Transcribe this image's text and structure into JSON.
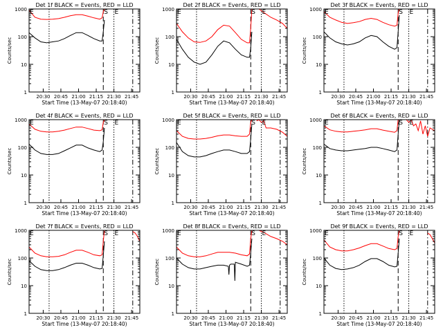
{
  "colors": {
    "events": "#000000",
    "lld": "#ff0000",
    "axis": "#000000",
    "background": "#ffffff"
  },
  "ylabel": "Counts/sec",
  "xlabel": "Start Time (13-May-07 20:18:40)",
  "ytick_labels": [
    "1",
    "10",
    "100",
    "1000"
  ],
  "xtick_labels": [
    "20:30",
    "20:45",
    "21:00",
    "21:15",
    "21:30",
    "21:45"
  ],
  "markers": {
    "s": "S",
    "e": "E"
  },
  "chart_data": [
    {
      "type": "line",
      "title": "Det 1f BLACK = Events, RED = LLD",
      "x_unit": "minutes after 20:18:40",
      "xlim": [
        0,
        94
      ],
      "ylim": [
        1,
        1000
      ],
      "yscale": "log",
      "vlines": [
        {
          "x": 17,
          "style": "dotted"
        },
        {
          "x": 63,
          "style": "dashed"
        },
        {
          "x": 72,
          "style": "dotted"
        },
        {
          "x": 88,
          "style": "dashdot"
        }
      ],
      "series": [
        {
          "name": "Events",
          "x": [
            0,
            5,
            10,
            15,
            20,
            25,
            30,
            35,
            40,
            45,
            50,
            55,
            60,
            62,
            63,
            64
          ],
          "y": [
            140,
            90,
            65,
            60,
            65,
            70,
            85,
            110,
            140,
            140,
            110,
            85,
            70,
            70,
            150,
            400
          ]
        },
        {
          "name": "LLD",
          "x": [
            0,
            5,
            10,
            15,
            20,
            25,
            30,
            35,
            40,
            45,
            50,
            55,
            60,
            62,
            63,
            64
          ],
          "y": [
            900,
            500,
            430,
            420,
            430,
            450,
            500,
            570,
            620,
            620,
            550,
            480,
            430,
            480,
            800,
            1000
          ]
        }
      ]
    },
    {
      "type": "line",
      "title": "Det 2f BLACK = Events, RED = LLD",
      "x_unit": "minutes after 20:18:40",
      "xlim": [
        0,
        94
      ],
      "ylim": [
        1,
        1000
      ],
      "yscale": "log",
      "vlines": [
        {
          "x": 17,
          "style": "dotted"
        },
        {
          "x": 63,
          "style": "dashed"
        },
        {
          "x": 72,
          "style": "dotted"
        },
        {
          "x": 88,
          "style": "dashdot"
        }
      ],
      "series": [
        {
          "name": "Events",
          "x": [
            0,
            5,
            10,
            15,
            20,
            25,
            30,
            35,
            40,
            45,
            50,
            55,
            60,
            62,
            63,
            64
          ],
          "y": [
            80,
            35,
            18,
            12,
            10,
            12,
            22,
            45,
            70,
            60,
            35,
            22,
            18,
            18,
            40,
            150
          ]
        },
        {
          "name": "LLD",
          "x": [
            0,
            5,
            10,
            15,
            20,
            25,
            30,
            35,
            40,
            45,
            50,
            55,
            60,
            62,
            63,
            64
          ],
          "y": [
            300,
            150,
            90,
            65,
            62,
            70,
            100,
            180,
            260,
            240,
            140,
            80,
            60,
            60,
            200,
            1000
          ]
        },
        {
          "name": "LLD-tail",
          "x": [
            70,
            75,
            80,
            85,
            90,
            94
          ],
          "y": [
            1000,
            700,
            500,
            400,
            300,
            200
          ]
        }
      ]
    },
    {
      "type": "line",
      "title": "Det 3f BLACK = Events, RED = LLD",
      "x_unit": "minutes after 20:18:40",
      "xlim": [
        0,
        94
      ],
      "ylim": [
        1,
        1000
      ],
      "yscale": "log",
      "vlines": [
        {
          "x": 17,
          "style": "dotted"
        },
        {
          "x": 63,
          "style": "dashed"
        },
        {
          "x": 72,
          "style": "dotted"
        },
        {
          "x": 88,
          "style": "dashdot"
        }
      ],
      "series": [
        {
          "name": "Events",
          "x": [
            0,
            5,
            10,
            15,
            20,
            25,
            30,
            35,
            40,
            45,
            50,
            55,
            60,
            62,
            63,
            64
          ],
          "y": [
            150,
            90,
            65,
            55,
            50,
            55,
            65,
            90,
            110,
            100,
            65,
            45,
            35,
            40,
            150,
            600
          ]
        },
        {
          "name": "LLD",
          "x": [
            0,
            5,
            10,
            15,
            20,
            25,
            30,
            35,
            40,
            45,
            50,
            55,
            60,
            62,
            63,
            64
          ],
          "y": [
            800,
            500,
            400,
            330,
            300,
            320,
            350,
            420,
            460,
            420,
            330,
            270,
            240,
            260,
            700,
            1000
          ]
        }
      ]
    },
    {
      "type": "line",
      "title": "Det 4f BLACK = Events, RED = LLD",
      "x_unit": "minutes after 20:18:40",
      "xlim": [
        0,
        94
      ],
      "ylim": [
        1,
        1000
      ],
      "yscale": "log",
      "vlines": [
        {
          "x": 17,
          "style": "dotted"
        },
        {
          "x": 63,
          "style": "dashed"
        },
        {
          "x": 72,
          "style": "dotted"
        },
        {
          "x": 88,
          "style": "dashdot"
        }
      ],
      "series": [
        {
          "name": "Events",
          "x": [
            0,
            5,
            10,
            15,
            20,
            25,
            30,
            35,
            40,
            45,
            50,
            55,
            60,
            62,
            63,
            64
          ],
          "y": [
            130,
            80,
            60,
            55,
            55,
            60,
            75,
            95,
            120,
            120,
            95,
            80,
            70,
            80,
            160,
            500
          ]
        },
        {
          "name": "LLD",
          "x": [
            0,
            5,
            10,
            15,
            20,
            25,
            30,
            35,
            40,
            45,
            50,
            55,
            60,
            62,
            63,
            64
          ],
          "y": [
            700,
            450,
            380,
            360,
            360,
            380,
            420,
            480,
            540,
            540,
            480,
            420,
            400,
            430,
            800,
            1000
          ]
        }
      ]
    },
    {
      "type": "line",
      "title": "Det 5f BLACK = Events, RED = LLD",
      "x_unit": "minutes after 20:18:40",
      "xlim": [
        0,
        94
      ],
      "ylim": [
        1,
        1000
      ],
      "yscale": "log",
      "vlines": [
        {
          "x": 17,
          "style": "dotted"
        },
        {
          "x": 63,
          "style": "dashed"
        },
        {
          "x": 72,
          "style": "dotted"
        },
        {
          "x": 88,
          "style": "dashdot"
        }
      ],
      "series": [
        {
          "name": "Events",
          "x": [
            0,
            5,
            10,
            15,
            20,
            25,
            30,
            35,
            40,
            45,
            50,
            55,
            60,
            62,
            63,
            64
          ],
          "y": [
            150,
            70,
            50,
            45,
            45,
            50,
            60,
            70,
            80,
            80,
            70,
            60,
            60,
            70,
            200,
            700
          ]
        },
        {
          "name": "LLD",
          "x": [
            0,
            5,
            10,
            15,
            20,
            25,
            30,
            35,
            40,
            45,
            50,
            55,
            60,
            62,
            63,
            64
          ],
          "y": [
            400,
            250,
            210,
            200,
            200,
            210,
            230,
            260,
            280,
            280,
            260,
            250,
            250,
            300,
            800,
            1000
          ]
        },
        {
          "name": "LLD-tail",
          "x": [
            68,
            70,
            72,
            74,
            76,
            80,
            85,
            90,
            94
          ],
          "y": [
            900,
            1000,
            800,
            900,
            500,
            500,
            450,
            350,
            250
          ]
        }
      ]
    },
    {
      "type": "line",
      "title": "Det 6f BLACK = Events, RED = LLD",
      "x_unit": "minutes after 20:18:40",
      "xlim": [
        0,
        94
      ],
      "ylim": [
        1,
        1000
      ],
      "yscale": "log",
      "vlines": [
        {
          "x": 17,
          "style": "dotted"
        },
        {
          "x": 63,
          "style": "dashed"
        },
        {
          "x": 72,
          "style": "dotted"
        },
        {
          "x": 88,
          "style": "dashdot"
        }
      ],
      "series": [
        {
          "name": "Events",
          "x": [
            0,
            5,
            10,
            15,
            20,
            25,
            30,
            35,
            40,
            45,
            50,
            55,
            60,
            62,
            63,
            64
          ],
          "y": [
            130,
            90,
            80,
            75,
            75,
            80,
            85,
            90,
            100,
            100,
            90,
            80,
            70,
            80,
            300,
            1000
          ]
        },
        {
          "name": "LLD",
          "x": [
            0,
            5,
            10,
            15,
            20,
            25,
            30,
            35,
            40,
            45,
            50,
            55,
            60,
            62,
            63,
            64
          ],
          "y": [
            600,
            430,
            380,
            360,
            360,
            380,
            400,
            430,
            470,
            470,
            420,
            380,
            350,
            400,
            1000,
            1000
          ]
        },
        {
          "name": "LLD-tail",
          "x": [
            68,
            70,
            72,
            74,
            76,
            78,
            80,
            82,
            84,
            86,
            88,
            90,
            94
          ],
          "y": [
            1000,
            1000,
            800,
            1000,
            600,
            700,
            400,
            900,
            300,
            600,
            250,
            500,
            400
          ]
        }
      ]
    },
    {
      "type": "line",
      "title": "Det 7f BLACK = Events, RED = LLD",
      "x_unit": "minutes after 20:18:40",
      "xlim": [
        0,
        94
      ],
      "ylim": [
        1,
        1000
      ],
      "yscale": "log",
      "vlines": [
        {
          "x": 17,
          "style": "dotted"
        },
        {
          "x": 63,
          "style": "dashed"
        },
        {
          "x": 72,
          "style": "dotted"
        },
        {
          "x": 88,
          "style": "dashdot"
        }
      ],
      "series": [
        {
          "name": "Events",
          "x": [
            0,
            5,
            10,
            15,
            20,
            25,
            30,
            35,
            40,
            45,
            50,
            55,
            60,
            62,
            63,
            64
          ],
          "y": [
            80,
            50,
            38,
            35,
            35,
            38,
            45,
            55,
            65,
            65,
            55,
            45,
            40,
            42,
            120,
            400
          ]
        },
        {
          "name": "LLD",
          "x": [
            0,
            5,
            10,
            15,
            20,
            25,
            30,
            35,
            40,
            45,
            50,
            55,
            60,
            62,
            63,
            64
          ],
          "y": [
            250,
            150,
            120,
            110,
            110,
            115,
            130,
            160,
            190,
            190,
            160,
            130,
            120,
            130,
            400,
            1000
          ]
        },
        {
          "name": "LLD-tail",
          "x": [
            88,
            90,
            92,
            94
          ],
          "y": [
            900,
            800,
            600,
            400
          ]
        }
      ]
    },
    {
      "type": "line",
      "title": "Det 8f BLACK = Events, RED = LLD",
      "x_unit": "minutes after 20:18:40",
      "xlim": [
        0,
        94
      ],
      "ylim": [
        1,
        1000
      ],
      "yscale": "log",
      "vlines": [
        {
          "x": 17,
          "style": "dotted"
        },
        {
          "x": 63,
          "style": "dashed"
        },
        {
          "x": 72,
          "style": "dotted"
        },
        {
          "x": 88,
          "style": "dashdot"
        }
      ],
      "series": [
        {
          "name": "Events",
          "x": [
            0,
            5,
            10,
            15,
            20,
            25,
            30,
            35,
            40,
            44,
            44.5,
            45,
            46,
            49,
            49.5,
            50,
            55,
            60,
            62,
            63,
            64
          ],
          "y": [
            100,
            60,
            45,
            40,
            40,
            45,
            50,
            55,
            55,
            50,
            25,
            55,
            60,
            60,
            15,
            70,
            60,
            50,
            55,
            150,
            500
          ]
        },
        {
          "name": "LLD",
          "x": [
            0,
            5,
            10,
            15,
            20,
            25,
            30,
            35,
            40,
            45,
            50,
            55,
            60,
            62,
            63,
            64
          ],
          "y": [
            250,
            150,
            120,
            110,
            110,
            120,
            140,
            160,
            160,
            160,
            150,
            130,
            120,
            140,
            500,
            1000
          ]
        },
        {
          "name": "LLD-tail",
          "x": [
            70,
            75,
            80,
            85,
            90,
            94
          ],
          "y": [
            1000,
            800,
            600,
            500,
            400,
            300
          ]
        }
      ]
    },
    {
      "type": "line",
      "title": "Det 9f BLACK = Events, RED = LLD",
      "x_unit": "minutes after 20:18:40",
      "xlim": [
        0,
        94
      ],
      "ylim": [
        1,
        1000
      ],
      "yscale": "log",
      "vlines": [
        {
          "x": 17,
          "style": "dotted"
        },
        {
          "x": 63,
          "style": "dashed"
        },
        {
          "x": 72,
          "style": "dotted"
        },
        {
          "x": 88,
          "style": "dashdot"
        }
      ],
      "series": [
        {
          "name": "Events",
          "x": [
            0,
            5,
            10,
            15,
            20,
            25,
            30,
            35,
            40,
            45,
            50,
            55,
            60,
            62,
            63,
            64
          ],
          "y": [
            100,
            55,
            42,
            38,
            40,
            45,
            55,
            75,
            95,
            95,
            75,
            55,
            48,
            50,
            150,
            500
          ]
        },
        {
          "name": "LLD",
          "x": [
            0,
            5,
            10,
            15,
            20,
            25,
            30,
            35,
            40,
            45,
            50,
            55,
            60,
            62,
            63,
            64
          ],
          "y": [
            450,
            250,
            200,
            180,
            180,
            200,
            230,
            280,
            330,
            330,
            270,
            220,
            200,
            220,
            600,
            1000
          ]
        },
        {
          "name": "LLD-tail",
          "x": [
            88,
            90,
            92,
            94
          ],
          "y": [
            800,
            700,
            500,
            350
          ]
        }
      ]
    }
  ]
}
